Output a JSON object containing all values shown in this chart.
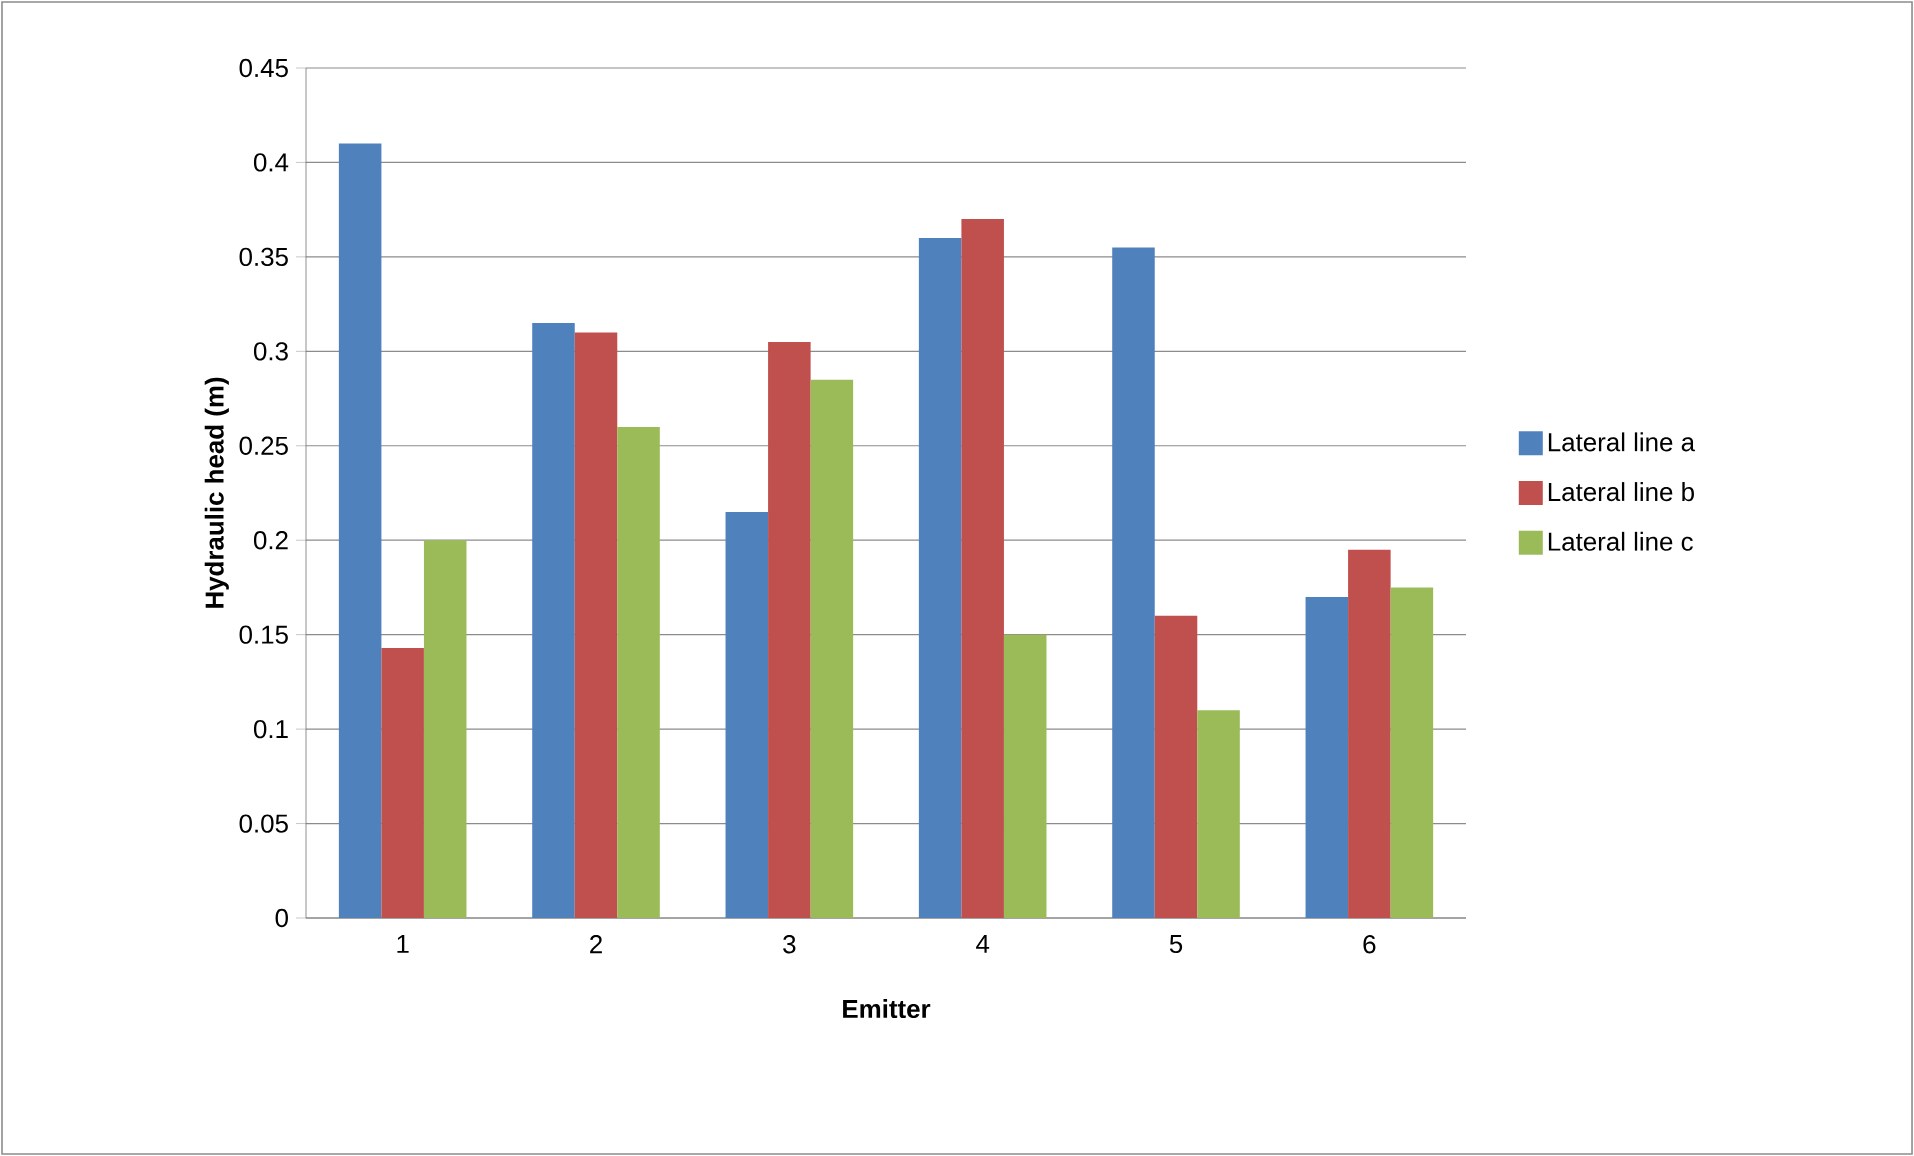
{
  "chart_data": {
    "type": "bar",
    "xlabel": "Emitter",
    "ylabel": "Hydraulic head (m)",
    "categories": [
      "1",
      "2",
      "3",
      "4",
      "5",
      "6"
    ],
    "series": [
      {
        "name": "Lateral line  a",
        "color": "#4f81bd",
        "values": [
          0.41,
          0.315,
          0.215,
          0.36,
          0.355,
          0.17
        ]
      },
      {
        "name": "Lateral line  b",
        "color": "#c0504d",
        "values": [
          0.143,
          0.31,
          0.305,
          0.37,
          0.16,
          0.195
        ]
      },
      {
        "name": "Lateral line  c",
        "color": "#9bbb59",
        "values": [
          0.2,
          0.26,
          0.285,
          0.15,
          0.11,
          0.175
        ]
      }
    ],
    "ylim": [
      0,
      0.45
    ],
    "yticks": [
      0,
      0.05,
      0.1,
      0.15,
      0.2,
      0.25,
      0.3,
      0.35,
      0.4,
      0.45
    ],
    "grid": "y",
    "legend": "right"
  }
}
